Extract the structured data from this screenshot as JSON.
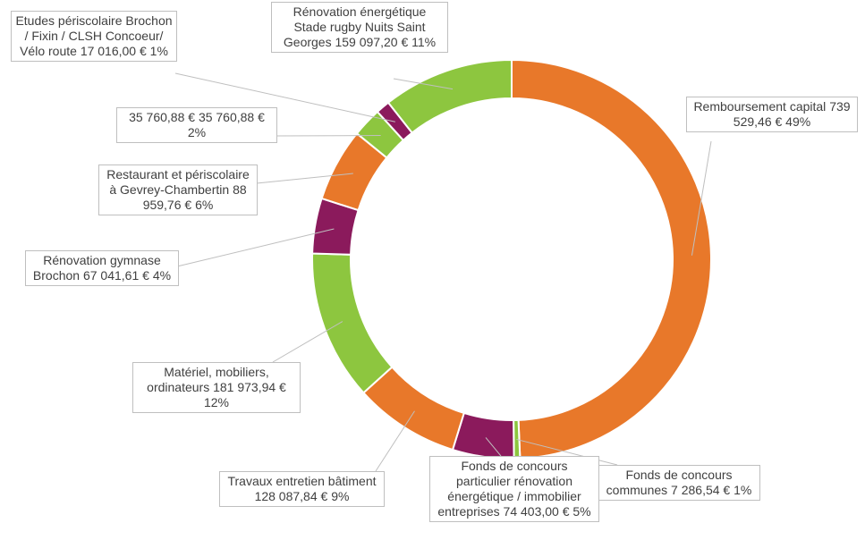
{
  "chart_data": {
    "type": "donut",
    "categories": [
      "Remboursement capital",
      "Fonds de concours communes",
      "Fonds de concours particulier rénovation énergétique / immobilier entreprises",
      "Travaux entretien bâtiment",
      "Matériel, mobiliers, ordinateurs",
      "Rénovation gymnase Brochon",
      "Restaurant et périscolaire à Gevrey-Chambertin",
      "35 760,88 €",
      "Etudes périscolaire Brochon / Fixin / CLSH Concoeur/ Vélo route",
      "Rénovation énergétique Stade rugby Nuits Saint Georges"
    ],
    "values": [
      739529.46,
      7286.54,
      74403.0,
      128087.84,
      181973.94,
      67041.61,
      88959.76,
      35760.88,
      17016.0,
      159097.2
    ],
    "value_labels": [
      "739 529,46 €",
      "7 286,54 €",
      "74 403,00 €",
      "128 087,84 €",
      "181 973,94 €",
      "67 041,61 €",
      "88 959,76 €",
      "35 760,88 €",
      "17 016,00 €",
      "159 097,20 €"
    ],
    "percents": [
      49,
      1,
      5,
      9,
      12,
      4,
      6,
      2,
      1,
      11
    ],
    "percent_labels": [
      "49%",
      "1%",
      "5%",
      "9%",
      "12%",
      "4%",
      "6%",
      "2%",
      "1%",
      "11%"
    ],
    "colors": [
      "#e8782a",
      "#8dc63f",
      "#8b1a5c",
      "#e8782a",
      "#8dc63f",
      "#8b1a5c",
      "#e8782a",
      "#8dc63f",
      "#8b1a5c",
      "#8dc63f"
    ]
  }
}
